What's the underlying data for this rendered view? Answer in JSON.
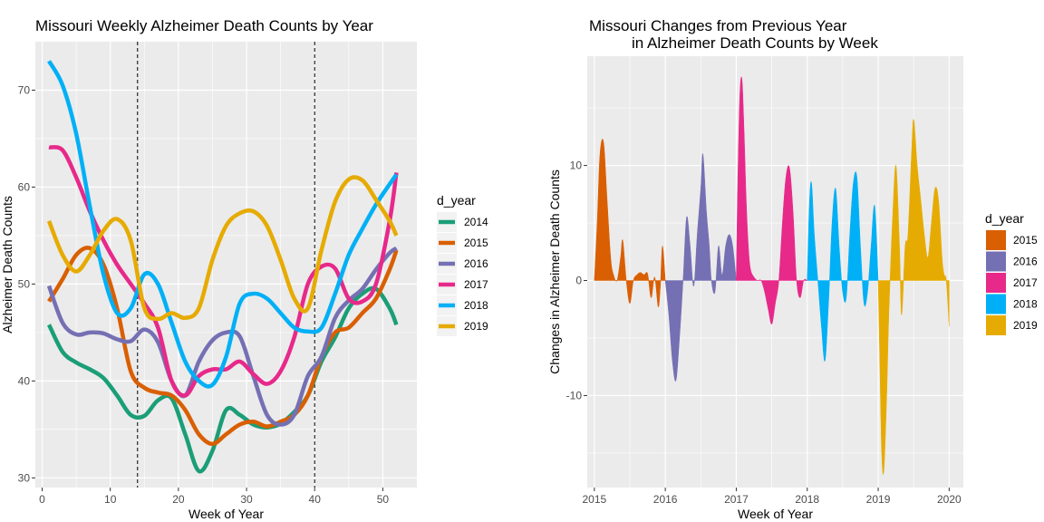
{
  "chart_data": [
    {
      "type": "line",
      "title": "Missouri Weekly Alzheimer Death Counts by Year",
      "xlabel": "Week of Year",
      "ylabel": "Alzheimer Death Counts",
      "xlim": [
        -1,
        55
      ],
      "ylim": [
        29,
        75
      ],
      "xticks": [
        0,
        10,
        20,
        30,
        40,
        50
      ],
      "yticks": [
        30,
        40,
        50,
        60,
        70
      ],
      "grid": true,
      "vlines": [
        14,
        40
      ],
      "legend": {
        "title": "d_year",
        "position": "right"
      },
      "series": [
        {
          "name": "2014",
          "color": "#1b9e77",
          "x": [
            1,
            3,
            5,
            7,
            9,
            11,
            13,
            15,
            17,
            19,
            21,
            23,
            25,
            27,
            29,
            31,
            33,
            35,
            37,
            39,
            41,
            43,
            45,
            47,
            49,
            51,
            52
          ],
          "values": [
            45.8,
            43,
            41.9,
            41.2,
            40.3,
            38.5,
            36.5,
            36.4,
            38,
            38.2,
            34.5,
            30.7,
            32.8,
            37,
            36.5,
            35.5,
            35.2,
            35.6,
            36.8,
            38.5,
            42,
            44.5,
            47.5,
            49,
            49.5,
            47.5,
            45.8
          ]
        },
        {
          "name": "2015",
          "color": "#d95f02",
          "x": [
            1,
            3,
            5,
            7,
            9,
            11,
            13,
            15,
            17,
            19,
            21,
            23,
            25,
            27,
            29,
            31,
            33,
            35,
            37,
            39,
            41,
            43,
            45,
            47,
            49,
            51,
            52
          ],
          "values": [
            48.2,
            50.5,
            53,
            53.7,
            52,
            47.5,
            41,
            39.3,
            38.8,
            38.5,
            37,
            34.5,
            33.5,
            34.5,
            35.5,
            35.8,
            35.3,
            35.8,
            36.5,
            38.5,
            42.5,
            45,
            45.5,
            47,
            48.5,
            51.5,
            53.5
          ]
        },
        {
          "name": "2016",
          "color": "#7570b3",
          "x": [
            1,
            3,
            5,
            7,
            9,
            11,
            13,
            15,
            17,
            19,
            21,
            23,
            25,
            27,
            29,
            31,
            33,
            35,
            37,
            39,
            41,
            43,
            45,
            47,
            49,
            51,
            52
          ],
          "values": [
            49.8,
            46,
            44.8,
            45,
            44.9,
            44.3,
            44.1,
            45.3,
            44,
            40,
            38.5,
            42,
            44.2,
            45,
            44.6,
            40.5,
            36.5,
            35.5,
            36.5,
            40.5,
            42.5,
            46.5,
            48.3,
            49.5,
            51.5,
            53.2,
            53.7
          ]
        },
        {
          "name": "2017",
          "color": "#e7298a",
          "x": [
            1,
            3,
            5,
            7,
            9,
            11,
            13,
            15,
            17,
            19,
            21,
            23,
            25,
            27,
            29,
            31,
            33,
            35,
            37,
            39,
            41,
            43,
            45,
            47,
            49,
            51,
            52
          ],
          "values": [
            64.1,
            63.8,
            61,
            57.5,
            54.5,
            52,
            50,
            48,
            45.5,
            40,
            38.5,
            40.5,
            41.2,
            41.2,
            42,
            40.7,
            39.7,
            41,
            44.5,
            50,
            51.8,
            51.6,
            48.5,
            48.2,
            50,
            56.5,
            61.5
          ]
        },
        {
          "name": "2018",
          "color": "#00b0f6",
          "x": [
            1,
            3,
            5,
            7,
            9,
            11,
            13,
            15,
            17,
            19,
            21,
            23,
            25,
            27,
            29,
            31,
            33,
            35,
            37,
            39,
            41,
            43,
            45,
            47,
            49,
            51,
            52
          ],
          "values": [
            73,
            70.5,
            65.5,
            58,
            51,
            47,
            47.5,
            51,
            50,
            46,
            42,
            40,
            39.6,
            42.5,
            48,
            49,
            48.5,
            47,
            45.5,
            45.1,
            45.5,
            49,
            53,
            55.7,
            58.2,
            60.3,
            61.3
          ]
        },
        {
          "name": "2019",
          "color": "#e6ab02",
          "x": [
            1,
            3,
            5,
            7,
            9,
            11,
            13,
            15,
            17,
            19,
            21,
            23,
            25,
            27,
            29,
            31,
            33,
            35,
            37,
            39,
            41,
            43,
            45,
            47,
            49,
            51,
            52
          ],
          "values": [
            56.5,
            53,
            51.3,
            53,
            55.5,
            56.7,
            54.5,
            47.5,
            46.4,
            47,
            46.5,
            47.5,
            52.5,
            56,
            57.3,
            57.5,
            56,
            52.5,
            48.5,
            47.5,
            53.5,
            58.5,
            60.8,
            60.7,
            58.7,
            56.5,
            55
          ]
        }
      ]
    },
    {
      "type": "area",
      "title": "Missouri Changes from Previous Year",
      "subtitle": "in Alzheimer Death Counts by Week",
      "xlabel": "Week of Year",
      "ylabel": "Changes in Alzheimer Death Counts",
      "xlim": [
        2014.9,
        2020.2
      ],
      "ylim": [
        -18,
        19.5
      ],
      "xticks": [
        2015,
        2016,
        2017,
        2018,
        2019,
        2020
      ],
      "yticks": [
        -10,
        0,
        10
      ],
      "grid": true,
      "legend": {
        "title": "d_year",
        "position": "right"
      },
      "series": [
        {
          "name": "2015",
          "color": "#d95f02",
          "x": [
            2015.0,
            2015.04,
            2015.08,
            2015.13,
            2015.18,
            2015.23,
            2015.27,
            2015.32,
            2015.37,
            2015.4,
            2015.45,
            2015.5,
            2015.55,
            2015.6,
            2015.65,
            2015.7,
            2015.75,
            2015.8,
            2015.85,
            2015.9,
            2015.93,
            2015.96,
            2016.0
          ],
          "values": [
            0,
            5,
            11,
            12,
            7,
            2,
            0.5,
            0,
            2,
            3.5,
            0,
            -2,
            0,
            0.5,
            0.7,
            0.5,
            0.6,
            -1.5,
            0.3,
            -2.3,
            -0.5,
            3,
            0
          ]
        },
        {
          "name": "2016",
          "color": "#7570b3",
          "x": [
            2016.0,
            2016.05,
            2016.1,
            2016.15,
            2016.2,
            2016.25,
            2016.3,
            2016.35,
            2016.4,
            2016.45,
            2016.5,
            2016.53,
            2016.58,
            2016.62,
            2016.65,
            2016.7,
            2016.75,
            2016.8,
            2016.85,
            2016.9,
            2016.95,
            2017.0
          ],
          "values": [
            0,
            -3,
            -7,
            -8.7,
            -5,
            0,
            5.5,
            3,
            -0.5,
            4,
            8,
            11,
            6,
            3,
            0,
            -1,
            3,
            0.5,
            3,
            4,
            3,
            0
          ]
        },
        {
          "name": "2017",
          "color": "#e7298a",
          "x": [
            2017.0,
            2017.02,
            2017.05,
            2017.08,
            2017.11,
            2017.14,
            2017.17,
            2017.2,
            2017.25,
            2017.3,
            2017.35,
            2017.4,
            2017.45,
            2017.5,
            2017.55,
            2017.6,
            2017.65,
            2017.7,
            2017.75,
            2017.8,
            2017.85,
            2017.9,
            2017.95,
            2018.0
          ],
          "values": [
            0,
            8,
            16,
            17.5,
            13,
            7,
            3,
            1,
            0.3,
            0,
            0,
            -1,
            -2.5,
            -3.8,
            -2,
            0,
            5,
            9,
            9.8,
            6,
            0,
            -1.5,
            0,
            0
          ]
        },
        {
          "name": "2018",
          "color": "#00b0f6",
          "x": [
            2018.0,
            2018.03,
            2018.06,
            2018.1,
            2018.15,
            2018.2,
            2018.25,
            2018.3,
            2018.35,
            2018.4,
            2018.45,
            2018.5,
            2018.55,
            2018.6,
            2018.65,
            2018.7,
            2018.75,
            2018.8,
            2018.85,
            2018.9,
            2018.95,
            2019.0
          ],
          "values": [
            0,
            6.5,
            8.5,
            4,
            0,
            -4,
            -7,
            -2,
            5,
            8,
            3,
            -1,
            -1.5,
            4,
            8.5,
            9,
            3,
            -2,
            -1,
            3,
            6.5,
            0
          ]
        },
        {
          "name": "2019",
          "color": "#e6ab02",
          "x": [
            2019.0,
            2019.02,
            2019.05,
            2019.08,
            2019.12,
            2019.15,
            2019.2,
            2019.25,
            2019.3,
            2019.33,
            2019.38,
            2019.42,
            2019.47,
            2019.5,
            2019.55,
            2019.6,
            2019.65,
            2019.7,
            2019.75,
            2019.8,
            2019.85,
            2019.9,
            2019.93,
            2019.96,
            2020.0
          ],
          "values": [
            0,
            -6,
            -15,
            -16.5,
            -10,
            -3,
            5,
            10,
            3,
            -3,
            3,
            4,
            11,
            14,
            10,
            7,
            4,
            2,
            5,
            8,
            7,
            2,
            0.5,
            0,
            -4
          ]
        }
      ]
    }
  ]
}
